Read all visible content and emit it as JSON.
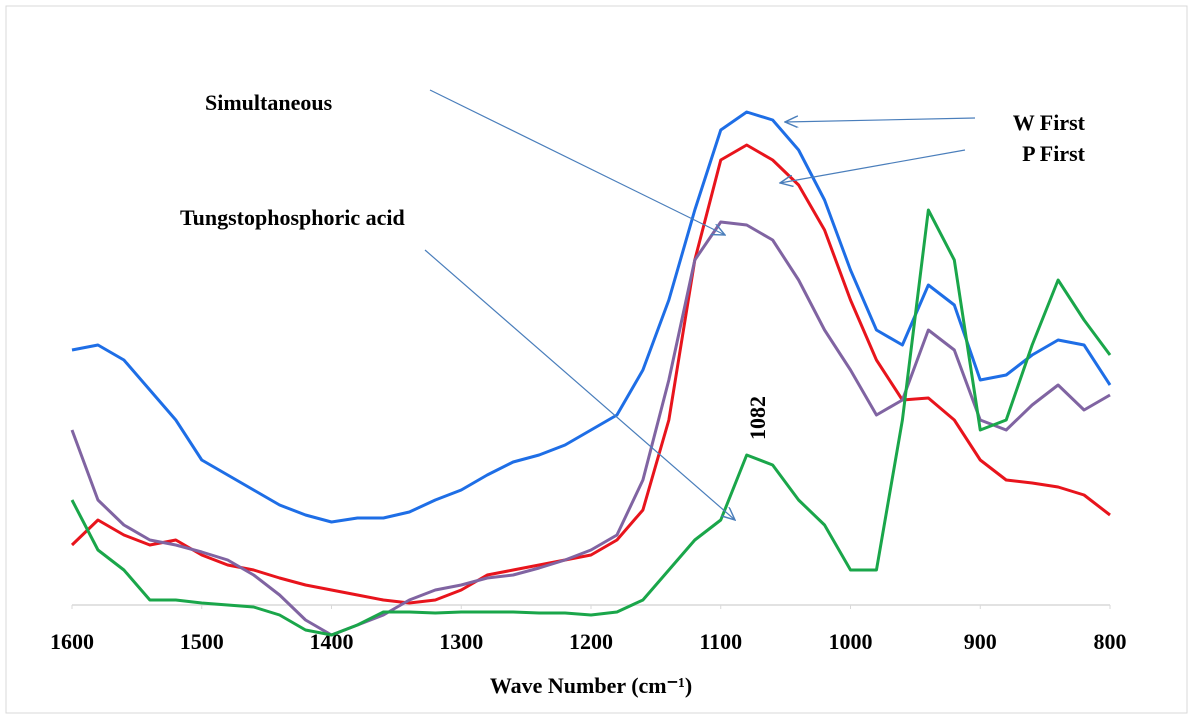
{
  "chart_data": {
    "type": "line",
    "x": [
      1600,
      1580,
      1560,
      1540,
      1520,
      1500,
      1480,
      1460,
      1440,
      1420,
      1400,
      1380,
      1360,
      1340,
      1320,
      1300,
      1280,
      1260,
      1240,
      1220,
      1200,
      1180,
      1160,
      1140,
      1120,
      1100,
      1080,
      1060,
      1040,
      1020,
      1000,
      980,
      960,
      940,
      920,
      900,
      880,
      860,
      840,
      820,
      800
    ],
    "series": [
      {
        "name": "W First",
        "color": "#1e6ee6",
        "values": [
          51,
          52,
          49,
          43,
          37,
          29,
          26,
          23,
          20,
          18,
          16.6,
          17.4,
          17.4,
          18.6,
          21,
          23,
          26,
          28.6,
          30,
          32,
          35,
          38,
          47,
          61,
          79,
          95,
          98.6,
          97,
          91,
          81,
          67,
          55,
          52,
          64,
          60,
          45,
          46,
          50,
          53,
          52,
          44
        ]
      },
      {
        "name": "P First",
        "color": "#e8141c",
        "values": [
          12,
          17,
          14,
          12,
          13,
          10,
          8,
          7,
          5.4,
          4,
          3,
          2,
          1,
          0.4,
          1,
          3,
          6,
          7,
          8,
          9,
          10,
          13,
          19,
          37,
          69,
          89,
          92,
          89,
          84,
          75,
          61,
          49,
          41,
          41.4,
          37,
          29,
          25,
          24.4,
          23.6,
          22,
          18
        ]
      },
      {
        "name": "Simultaneous",
        "color": "#8064a2",
        "values": [
          35,
          21,
          16,
          13,
          12,
          10.6,
          9,
          6,
          2,
          -3,
          -6,
          -4,
          -2,
          1,
          3,
          4,
          5.4,
          6,
          7.4,
          9,
          11,
          14,
          25,
          45,
          69,
          76.6,
          76,
          73,
          65,
          55,
          47,
          38,
          41,
          55,
          51,
          37,
          35,
          40,
          44,
          39,
          42
        ]
      },
      {
        "name": "Tungstophosphoric acid",
        "color": "#1aa64a",
        "values": [
          21,
          11,
          7,
          1,
          1,
          0.4,
          0,
          -0.4,
          -2,
          -5,
          -6,
          -4,
          -1.4,
          -1.4,
          -1.6,
          -1.4,
          -1.4,
          -1.4,
          -1.6,
          -1.6,
          -2,
          -1.4,
          1,
          7,
          13,
          17,
          30,
          28,
          21,
          16,
          7,
          7,
          37,
          79,
          69,
          35,
          37,
          52,
          65,
          57,
          50
        ]
      }
    ],
    "xlim": [
      1600,
      800
    ],
    "xticks": [
      1600,
      1500,
      1400,
      1300,
      1200,
      1100,
      1000,
      900,
      800
    ],
    "ylim": [
      -8,
      105
    ],
    "x_label": "Wave Number (cm⁻¹)",
    "annotations": [
      "1082"
    ]
  }
}
